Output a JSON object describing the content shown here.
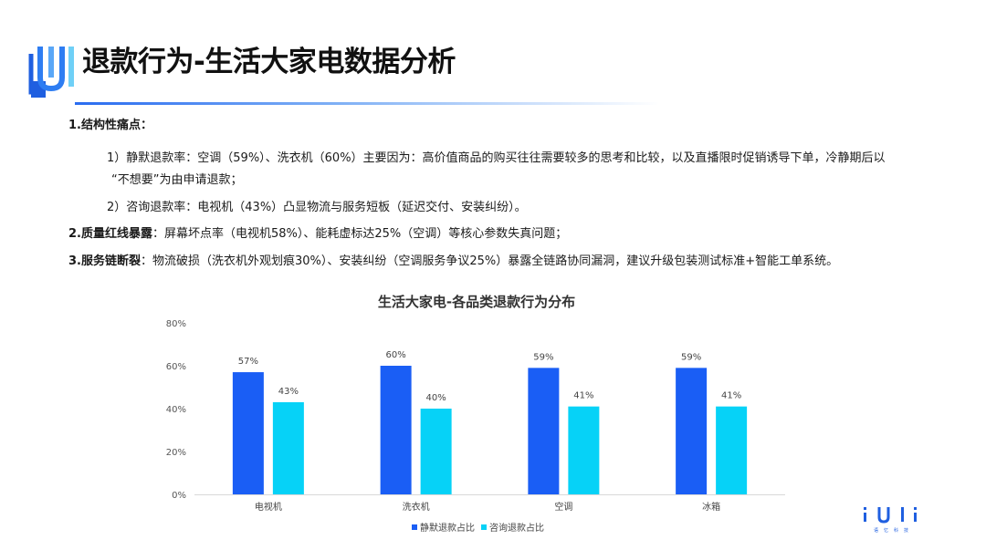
{
  "header": {
    "title": "退款行为-生活大家电数据分析"
  },
  "content": {
    "section1_title": "1.结构性痛点",
    "section1_colon": "：",
    "item1_line1": "1）静默退款率：空调（59%）、洗衣机（60%）主要因为：高价值商品的购买往往需要较多的思考和比较，以及直播限时促销诱导下单，冷静期后以",
    "item1_line2": "“不想要”为由申请退款；",
    "item2": "2）咨询退款率：电视机（43%）凸显物流与服务短板（延迟交付、安装纠纷）。",
    "section2_title": "2.质量红线暴露",
    "section2_text": "：屏幕坏点率（电视机58%）、能耗虚标达25%（空调）等核心参数失真问题；",
    "section3_title": "3.服务链断裂",
    "section3_text": "：物流破损（洗衣机外观划痕30%）、安装纠纷（空调服务争议25%）暴露全链路协同漏洞，建议升级包装测试标准+智能工单系统。"
  },
  "chart_data": {
    "type": "bar",
    "title": "生活大家电-各品类退款行为分布",
    "categories": [
      "电视机",
      "洗衣机",
      "空调",
      "冰箱"
    ],
    "series": [
      {
        "name": "静默退款占比",
        "values": [
          57,
          60,
          59,
          59
        ],
        "color": "#1a5ef5"
      },
      {
        "name": "咨询退款占比",
        "values": [
          43,
          40,
          41,
          41
        ],
        "color": "#06d2f7"
      }
    ],
    "data_labels": [
      [
        "57%",
        "60%",
        "59%",
        "59%"
      ],
      [
        "43%",
        "40%",
        "41%",
        "41%"
      ]
    ],
    "ylim": [
      0,
      80
    ],
    "yticks": [
      "0%",
      "20%",
      "40%",
      "60%",
      "80%"
    ],
    "ytick_values": [
      0,
      20,
      40,
      60,
      80
    ],
    "grid": false,
    "legend_position": "bottom"
  },
  "brand": {
    "name": "语忆科技"
  }
}
